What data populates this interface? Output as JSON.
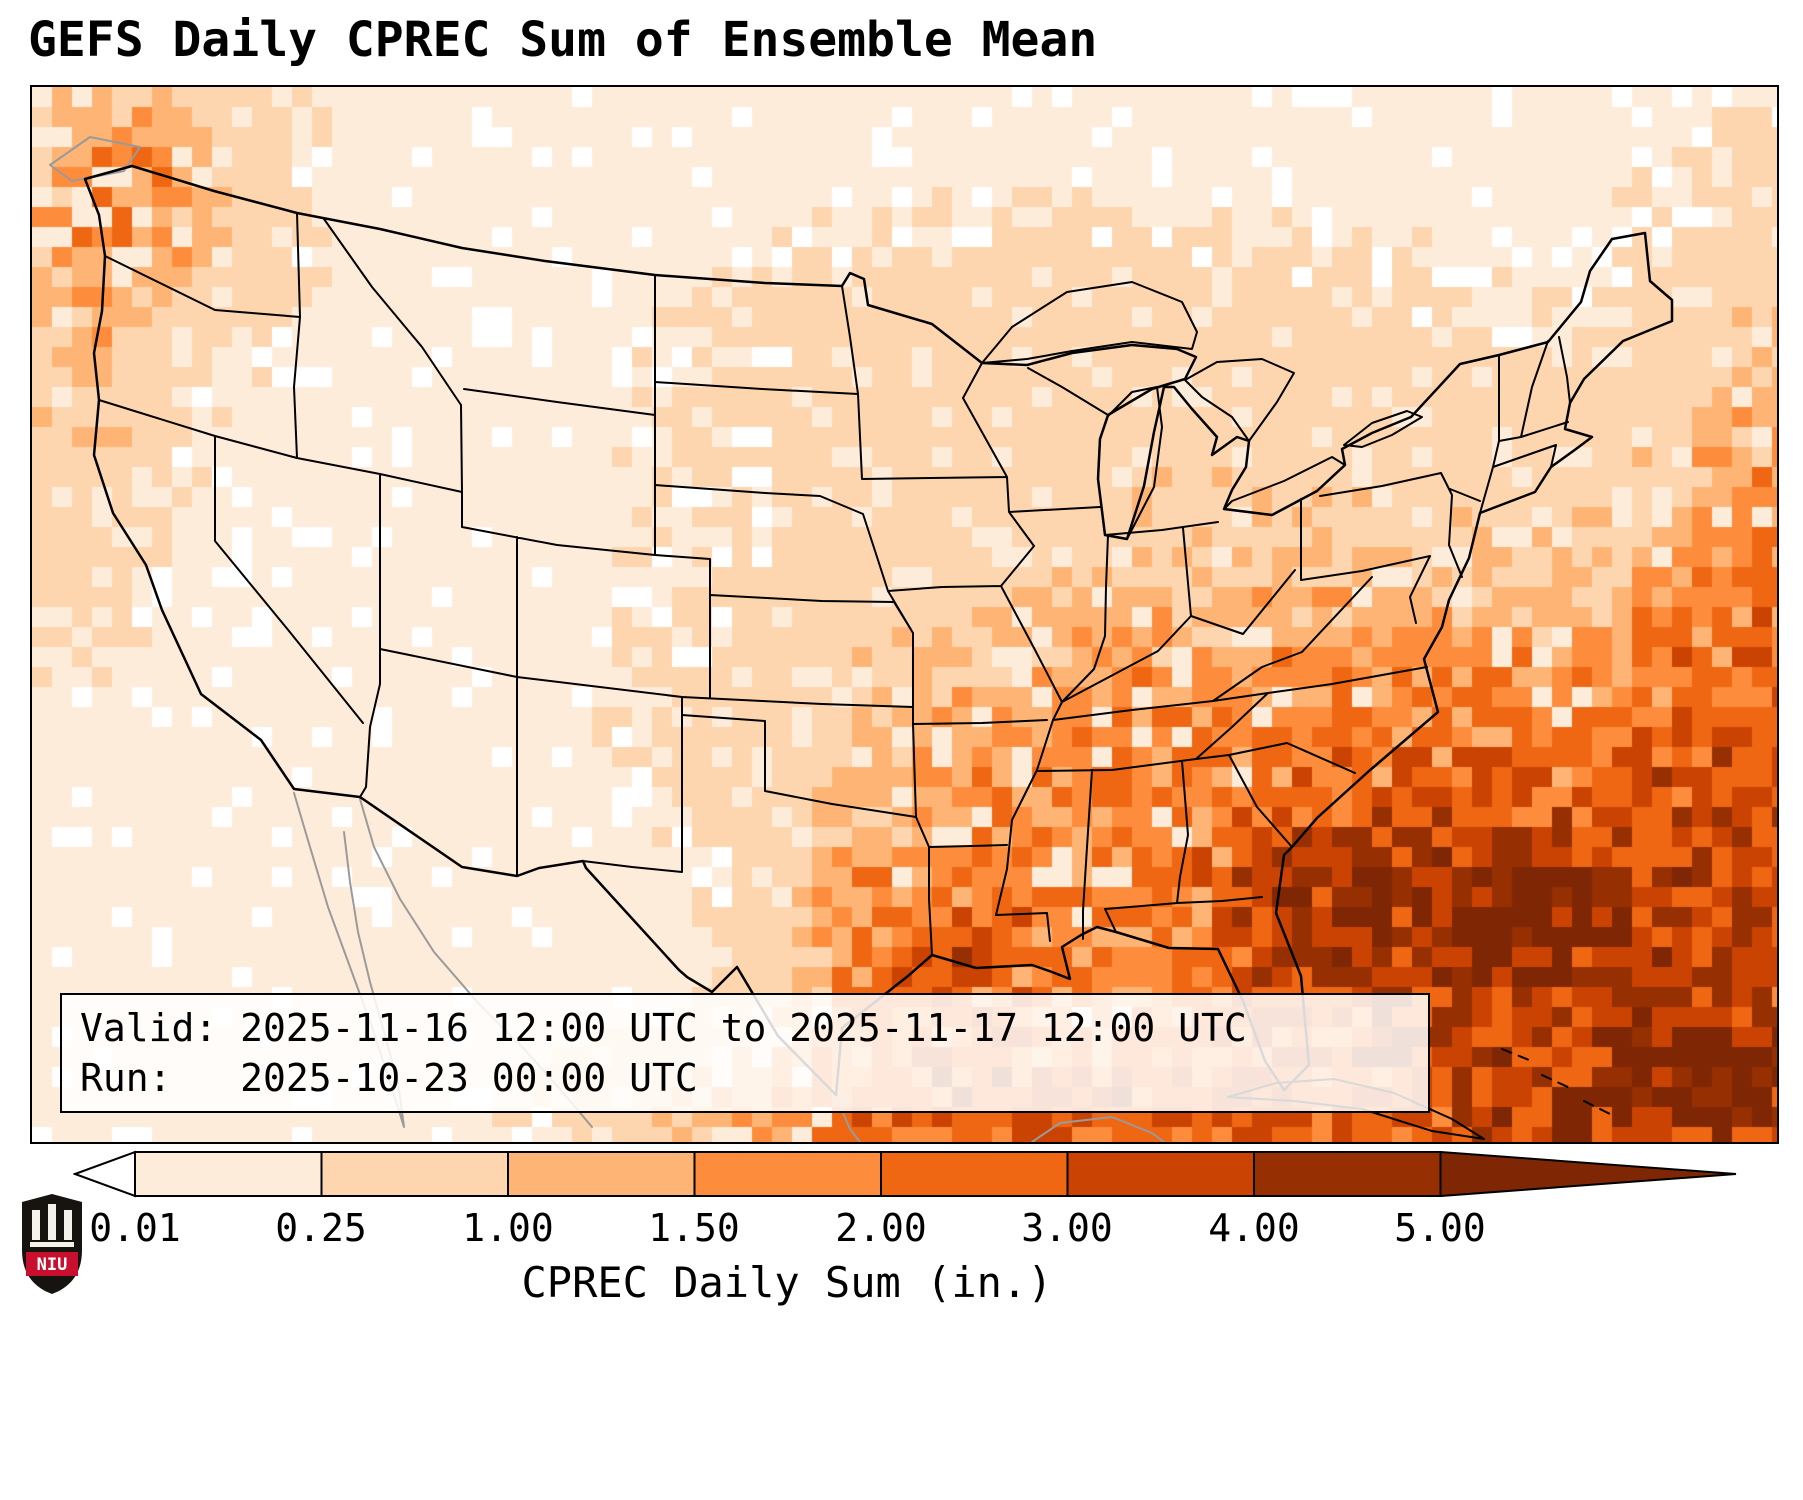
{
  "title": "GEFS Daily CPREC Sum of Ensemble Mean",
  "info_box": {
    "valid_line": "Valid: 2025-11-16 12:00 UTC to 2025-11-17 12:00 UTC",
    "run_line": "Run:   2025-10-23 00:00 UTC"
  },
  "colorbar": {
    "label": "CPREC Daily Sum (in.)",
    "ticks": [
      "0.01",
      "0.25",
      "1.00",
      "1.50",
      "2.00",
      "3.00",
      "4.00",
      "5.00"
    ],
    "boundaries": [
      0.01,
      0.25,
      1.0,
      1.5,
      2.0,
      3.0,
      4.0,
      5.0
    ],
    "band_colors": [
      "#feecdb",
      "#fdd6af",
      "#fdb475",
      "#fd8d3c",
      "#ef6712",
      "#cb4302",
      "#963003"
    ],
    "under_color": "#ffffff",
    "over_color": "#7f2704"
  },
  "map_render": {
    "cell_size": 20,
    "base": 0.1,
    "blobs": [
      [
        0.86,
        0.8,
        0.15,
        0.17,
        3.2
      ],
      [
        0.73,
        0.79,
        0.035,
        0.05,
        2.0
      ],
      [
        0.855,
        0.785,
        0.05,
        0.04,
        2.8
      ],
      [
        0.52,
        0.82,
        0.05,
        0.07,
        2.4
      ],
      [
        0.56,
        0.97,
        0.12,
        0.05,
        2.6
      ],
      [
        0.57,
        0.63,
        0.1,
        0.09,
        0.8
      ],
      [
        0.7,
        0.5,
        0.18,
        0.16,
        0.55
      ],
      [
        0.055,
        0.1,
        0.05,
        0.09,
        1.5
      ],
      [
        0.03,
        0.32,
        0.035,
        0.12,
        0.7
      ],
      [
        0.58,
        0.27,
        0.13,
        0.1,
        0.35
      ],
      [
        0.995,
        0.52,
        0.05,
        0.22,
        1.6
      ],
      [
        0.93,
        0.97,
        0.1,
        0.06,
        2.5
      ],
      [
        0.965,
        0.93,
        0.03,
        0.03,
        3.0
      ]
    ]
  },
  "logo": {
    "text": "NIU",
    "red": "#c8102e"
  }
}
